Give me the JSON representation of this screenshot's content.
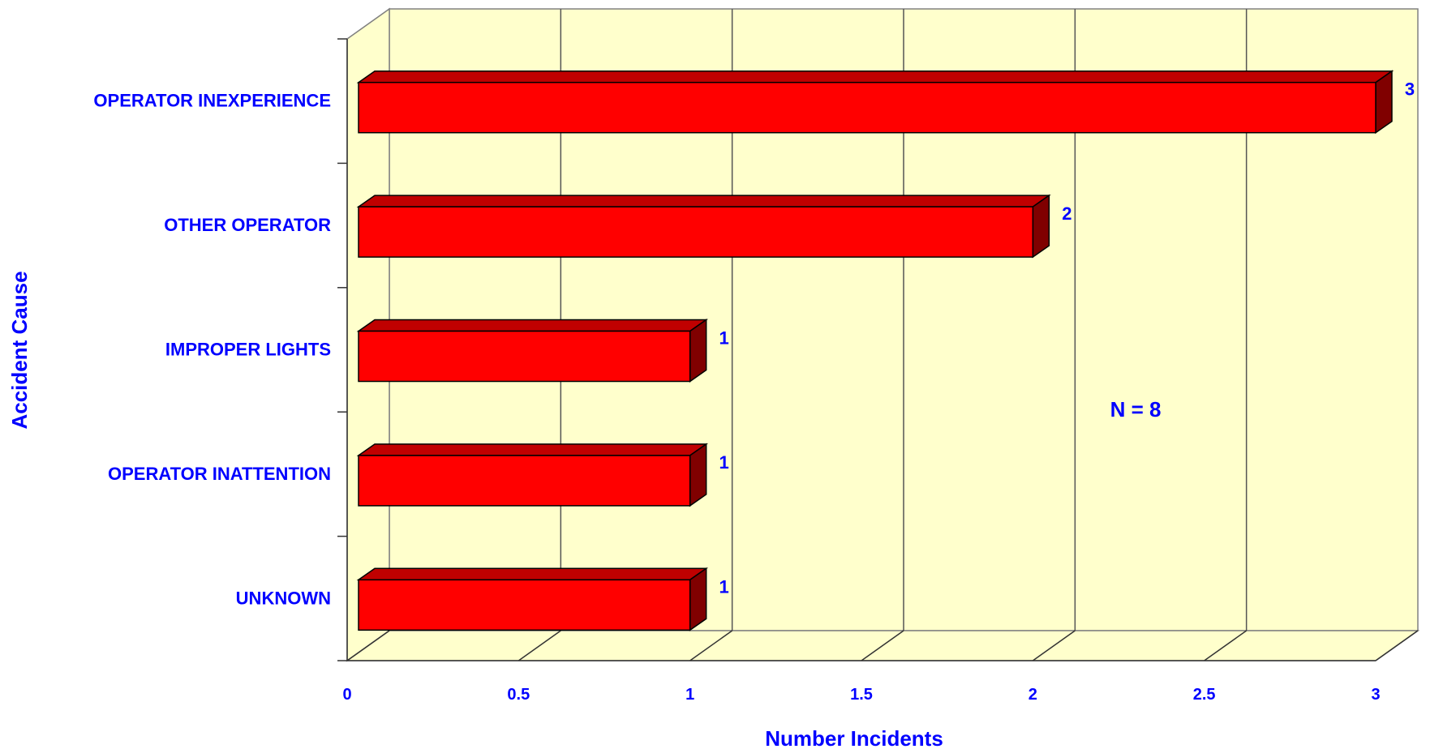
{
  "chart_data": {
    "type": "bar",
    "orientation": "horizontal",
    "style": "3d",
    "title": "",
    "xlabel": "Number Incidents",
    "ylabel": "Accident Cause",
    "categories": [
      "OPERATOR INEXPERIENCE",
      "OTHER OPERATOR",
      "IMPROPER LIGHTS",
      "OPERATOR INATTENTION",
      "UNKNOWN"
    ],
    "values": [
      3,
      2,
      1,
      1,
      1
    ],
    "data_labels": [
      "3",
      "2",
      "1",
      "1",
      "1"
    ],
    "xlim": [
      0,
      3
    ],
    "xticks": [
      0,
      0.5,
      1,
      1.5,
      2,
      2.5,
      3
    ],
    "xtick_labels": [
      "0",
      "0.5",
      "1",
      "1.5",
      "2",
      "2.5",
      "3"
    ],
    "grid": true,
    "annotation": "N = 8",
    "colors": {
      "bar_front": "#ff0000",
      "bar_top": "#c00000",
      "bar_side": "#800000",
      "plot_background": "#ffffcc",
      "text": "#0000ff"
    }
  }
}
